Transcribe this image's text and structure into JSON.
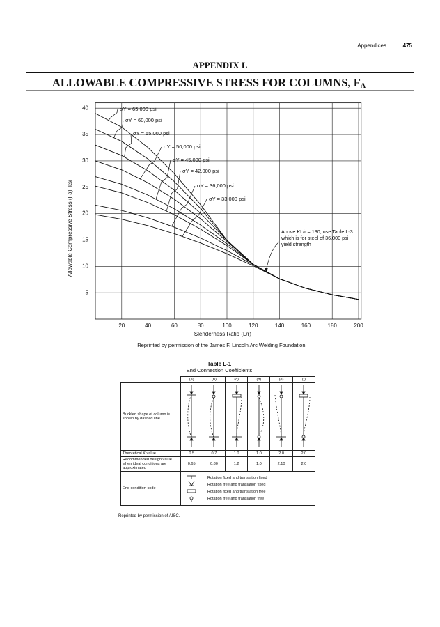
{
  "header": {
    "section": "Appendices",
    "page": "475"
  },
  "title": {
    "appendix": "APPENDIX L",
    "main": "ALLOWABLE COMPRESSIVE STRESS FOR COLUMNS, F",
    "subscript": "A"
  },
  "chart_data": {
    "type": "line",
    "x_label": "Slenderness Ratio (L/r)",
    "y_label": "Allowable Compressive Stress (Fa), ksi",
    "x": [
      0,
      20,
      40,
      60,
      80,
      100,
      120,
      140,
      160,
      180,
      200
    ],
    "series": [
      {
        "name": "σY = 65,000 psi",
        "color": "#111111",
        "values": [
          39.0,
          36.4,
          32.52,
          27.59,
          21.67,
          14.93,
          10.37,
          7.62,
          5.83,
          4.61,
          3.73
        ]
      },
      {
        "name": "σY = 60,000 psi",
        "color": "#111111",
        "values": [
          36.0,
          33.71,
          30.35,
          26.07,
          20.94,
          14.93,
          10.37,
          7.62,
          5.83,
          4.61,
          3.73
        ]
      },
      {
        "name": "σY = 55,000 psi",
        "color": "#111111",
        "values": [
          33.0,
          31.02,
          28.11,
          24.43,
          20.04,
          14.91,
          10.37,
          7.62,
          5.83,
          4.61,
          3.73
        ]
      },
      {
        "name": "σY = 50,000 psi",
        "color": "#111111",
        "values": [
          30.0,
          28.3,
          25.83,
          22.72,
          19.01,
          14.71,
          10.37,
          7.62,
          5.83,
          4.61,
          3.73
        ]
      },
      {
        "name": "σY = 45,000 psi",
        "color": "#111111",
        "values": [
          27.0,
          25.57,
          23.5,
          20.91,
          17.84,
          14.29,
          10.37,
          7.62,
          5.83,
          4.61,
          3.73
        ]
      },
      {
        "name": "σY = 42,000 psi",
        "color": "#111111",
        "values": [
          25.2,
          23.92,
          22.08,
          19.78,
          17.06,
          13.92,
          10.37,
          7.62,
          5.83,
          4.61,
          3.73
        ]
      },
      {
        "name": "σY = 36,000 psi",
        "color": "#111111",
        "values": [
          21.6,
          20.6,
          19.19,
          17.43,
          15.36,
          12.98,
          10.28,
          7.62,
          5.83,
          4.61,
          3.73
        ]
      },
      {
        "name": "σY = 33,000 psi",
        "color": "#111111",
        "values": [
          19.8,
          18.93,
          17.71,
          16.2,
          14.42,
          12.38,
          10.09,
          7.62,
          5.83,
          4.61,
          3.73
        ]
      }
    ],
    "xlim": [
      0,
      202
    ],
    "ylim": [
      0,
      41
    ],
    "xticks": [
      20,
      40,
      60,
      80,
      100,
      120,
      140,
      160,
      180,
      200
    ],
    "yticks": [
      5,
      10,
      15,
      20,
      25,
      30,
      35,
      40
    ],
    "grid": true,
    "annotation": [
      "Above KL/r = 130, use Table L-3",
      "which is for steel of 36,000 psi",
      "yield strength"
    ],
    "source": "Reprinted by permission of the James F. Lincoln Arc Welding Foundation"
  },
  "table": {
    "title": "Table L-1",
    "subtitle": "End Connection Coefficients",
    "columns": [
      "(a)",
      "(b)",
      "(c)",
      "(d)",
      "(e)",
      "(f)"
    ],
    "rows": [
      {
        "label": "Buckled shape of column is shown by dashed line"
      },
      {
        "label": "Theoretical K value",
        "values": [
          "0.5",
          "0.7",
          "1.0",
          "1.0",
          "2.0",
          "2.0"
        ]
      },
      {
        "label": "Recommended design value when ideal conditions are approximated",
        "values": [
          "0.65",
          "0.80",
          "1.2",
          "1.0",
          "2.10",
          "2.0"
        ]
      },
      {
        "label": "End condition code",
        "codes": [
          "Rotation fixed and translation fixed",
          "Rotation free and translation fixed",
          "Rotation fixed and translation free",
          "Rotation free and translation free"
        ]
      }
    ],
    "source": "Reprinted by permission of AISC."
  }
}
